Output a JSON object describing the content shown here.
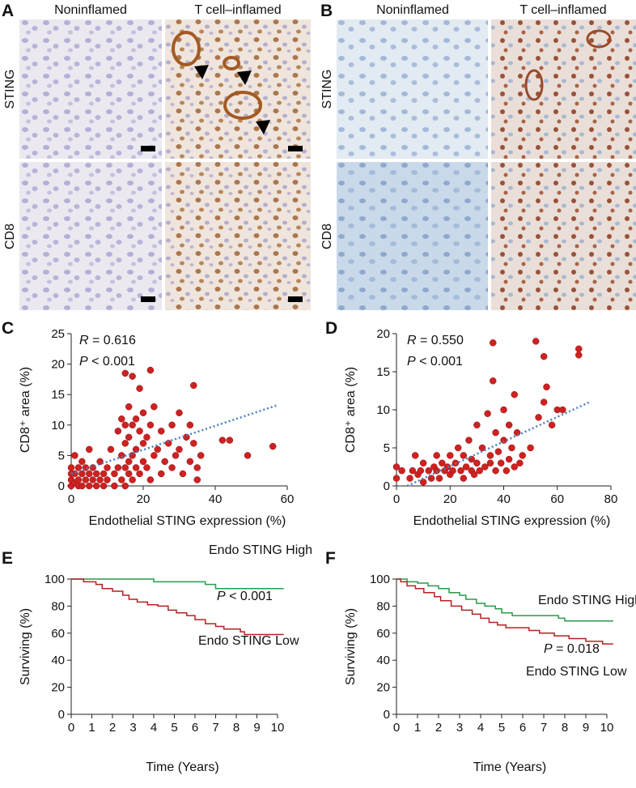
{
  "figure": {
    "panel_labels": [
      "A",
      "B",
      "C",
      "D",
      "E",
      "F"
    ],
    "image_panels": [
      {
        "columns": [
          "Noninflamed",
          "T cell–inflamed"
        ],
        "rows": [
          "STING",
          "CD8"
        ]
      },
      {
        "columns": [
          "Noninflamed",
          "T cell–inflamed"
        ],
        "rows": [
          "STING",
          "CD8"
        ]
      }
    ]
  },
  "chart_data": [
    {
      "type": "scatter",
      "xlabel": "Endothelial STING expression (%)",
      "ylabel": "CD8⁺ area (%)",
      "xlim": [
        0,
        60
      ],
      "ylim": [
        0,
        25
      ],
      "xticks": [
        0,
        20,
        40,
        60
      ],
      "yticks": [
        0,
        5,
        10,
        15,
        20,
        25
      ],
      "annotations": [
        {
          "symbol": "R",
          "text": " = 0.616"
        },
        {
          "symbol": "P",
          "text": " < 0.001"
        }
      ],
      "trendline": {
        "x": [
          0,
          57
        ],
        "values": [
          2,
          13.2
        ],
        "color": "#4a7fc1"
      },
      "series": [
        {
          "color": "#cc2222",
          "x": [
            0,
            0,
            0,
            0,
            1,
            1,
            1,
            2,
            2,
            2,
            3,
            3,
            3,
            4,
            4,
            5,
            5,
            5,
            6,
            6,
            7,
            7,
            8,
            8,
            9,
            9,
            10,
            10,
            11,
            12,
            12,
            13,
            13,
            14,
            14,
            14,
            15,
            15,
            15,
            15,
            15,
            16,
            16,
            16,
            16,
            17,
            17,
            17,
            17,
            18,
            18,
            18,
            19,
            19,
            19,
            20,
            20,
            20,
            21,
            21,
            22,
            22,
            22,
            23,
            23,
            24,
            25,
            25,
            26,
            27,
            28,
            28,
            29,
            30,
            30,
            31,
            32,
            33,
            33,
            34,
            34,
            35,
            35,
            36,
            42,
            44,
            49,
            56
          ],
          "values": [
            0,
            1,
            2,
            3,
            0.5,
            2,
            5,
            0,
            1,
            3,
            0,
            2,
            4,
            1,
            3,
            0,
            2,
            6,
            1,
            3,
            0,
            2,
            1,
            4,
            0,
            2,
            1,
            3,
            6,
            0,
            2,
            3,
            9,
            1,
            5,
            11,
            0,
            3,
            7,
            10,
            18.5,
            2,
            4,
            8,
            13,
            1,
            5,
            10,
            18,
            3,
            6,
            11,
            2,
            9,
            16,
            4,
            7,
            12,
            3,
            8,
            1,
            19,
            10,
            5,
            13,
            6,
            2,
            9,
            4,
            7,
            3,
            10,
            5,
            12,
            6,
            2,
            8,
            4,
            10,
            16.5,
            7,
            1,
            3,
            5,
            7.5,
            7.5,
            5,
            6.5
          ]
        }
      ]
    },
    {
      "type": "scatter",
      "xlabel": "Endothelial STING expression (%)",
      "ylabel": "CD8⁺ area (%)",
      "xlim": [
        0,
        80
      ],
      "ylim": [
        0,
        20
      ],
      "xticks": [
        0,
        20,
        40,
        60,
        80
      ],
      "yticks": [
        0,
        5,
        10,
        15,
        20
      ],
      "annotations": [
        {
          "symbol": "R",
          "text": " = 0.550"
        },
        {
          "symbol": "P",
          "text": " < 0.001"
        }
      ],
      "trendline": {
        "x": [
          4,
          72
        ],
        "values": [
          0,
          11
        ],
        "color": "#4a7fc1"
      },
      "series": [
        {
          "color": "#cc2222",
          "x": [
            0,
            0,
            2,
            5,
            6,
            7,
            8,
            9,
            10,
            10,
            12,
            13,
            14,
            15,
            15,
            16,
            17,
            18,
            19,
            20,
            20,
            21,
            22,
            23,
            24,
            25,
            25,
            26,
            27,
            28,
            28,
            29,
            30,
            30,
            31,
            32,
            33,
            34,
            35,
            35,
            36,
            36,
            37,
            37,
            38,
            39,
            40,
            40,
            41,
            42,
            42,
            43,
            44,
            44,
            45,
            46,
            47,
            50,
            52,
            53,
            55,
            55,
            56,
            58,
            60,
            62,
            68,
            68
          ],
          "values": [
            1,
            2.5,
            2,
            1,
            2,
            4,
            1.5,
            2,
            3,
            0.5,
            2,
            1,
            2.5,
            4,
            2,
            1,
            3,
            2,
            2.5,
            1.5,
            4,
            2,
            3,
            5,
            2,
            1,
            4,
            2.5,
            6,
            2,
            3.5,
            1.5,
            8,
            3,
            2,
            5,
            2.5,
            9.5,
            4,
            3,
            13.8,
            18.8,
            7,
            2,
            4.5,
            3,
            10,
            6,
            2,
            8,
            3.5,
            5,
            12,
            2.5,
            7,
            3,
            4,
            5,
            19,
            9,
            17,
            11,
            13,
            8,
            10,
            10,
            18,
            17.2
          ]
        }
      ]
    },
    {
      "type": "line",
      "xlabel": "Time (Years)",
      "ylabel": "Surviving (%)",
      "xlim": [
        0,
        10
      ],
      "ylim": [
        0,
        100
      ],
      "xticks": [
        0,
        1,
        2,
        3,
        4,
        5,
        6,
        7,
        8,
        9,
        10
      ],
      "yticks": [
        0,
        20,
        40,
        60,
        80,
        100
      ],
      "annotations": [
        {
          "symbol": "P",
          "text": " < 0.001"
        }
      ],
      "series": [
        {
          "name": "Endo STING High",
          "color": "#2a9a4a",
          "x": [
            0,
            4,
            4,
            6.5,
            6.5,
            7,
            7,
            10.3
          ],
          "values": [
            100,
            100,
            98,
            98,
            96,
            96,
            93,
            93
          ]
        },
        {
          "name": "Endo STING Low",
          "color": "#b22222",
          "x": [
            0,
            0.6,
            0.6,
            1.2,
            1.2,
            1.5,
            1.5,
            2,
            2,
            2.5,
            2.5,
            2.8,
            2.8,
            3.2,
            3.2,
            3.7,
            3.7,
            4.2,
            4.2,
            4.7,
            4.7,
            5.1,
            5.1,
            5.6,
            5.6,
            6,
            6,
            6.5,
            6.5,
            7,
            7,
            7.4,
            7.4,
            8.2,
            8.2,
            8.4,
            8.4,
            10.3
          ],
          "values": [
            100,
            100,
            98,
            98,
            96,
            96,
            93,
            93,
            91,
            91,
            88,
            88,
            85,
            85,
            83,
            83,
            81,
            81,
            80,
            80,
            77,
            77,
            75,
            75,
            73,
            73,
            70,
            70,
            67,
            67,
            65,
            65,
            63,
            63,
            61,
            61,
            59,
            59
          ]
        }
      ]
    },
    {
      "type": "line",
      "xlabel": "Time (Years)",
      "ylabel": "Surviving (%)",
      "xlim": [
        0,
        10
      ],
      "ylim": [
        0,
        100
      ],
      "xticks": [
        0,
        1,
        2,
        3,
        4,
        5,
        6,
        7,
        8,
        9,
        10
      ],
      "yticks": [
        0,
        20,
        40,
        60,
        80,
        100
      ],
      "annotations": [
        {
          "symbol": "P",
          "text": " = 0.018"
        }
      ],
      "series": [
        {
          "name": "Endo STING High",
          "color": "#2a9a4a",
          "x": [
            0,
            0.5,
            0.5,
            1,
            1,
            1.5,
            1.5,
            2,
            2,
            2.5,
            2.5,
            3,
            3,
            3.3,
            3.3,
            3.8,
            3.8,
            4.2,
            4.2,
            4.7,
            4.7,
            5,
            5,
            5.5,
            5.5,
            7.7,
            7.7,
            8,
            8,
            10.3
          ],
          "values": [
            100,
            100,
            98,
            98,
            97,
            97,
            95,
            95,
            93,
            93,
            90,
            90,
            88,
            88,
            85,
            85,
            82,
            82,
            80,
            80,
            78,
            78,
            75,
            75,
            73,
            73,
            71,
            71,
            69,
            69
          ]
        },
        {
          "name": "Endo STING Low",
          "color": "#b22222",
          "x": [
            0,
            0.2,
            0.2,
            0.5,
            0.5,
            0.9,
            0.9,
            1.3,
            1.3,
            1.8,
            1.8,
            2.1,
            2.1,
            2.6,
            2.6,
            3.1,
            3.1,
            3.6,
            3.6,
            4,
            4,
            4.4,
            4.4,
            4.8,
            4.8,
            5.2,
            5.2,
            6.3,
            6.3,
            6.8,
            6.8,
            7.5,
            7.5,
            8.2,
            8.2,
            9,
            9,
            9.8,
            9.8,
            10.3
          ],
          "values": [
            100,
            100,
            98,
            98,
            95,
            95,
            93,
            93,
            90,
            90,
            87,
            87,
            84,
            84,
            80,
            80,
            77,
            77,
            74,
            74,
            71,
            71,
            68,
            68,
            66,
            66,
            64,
            64,
            62,
            62,
            60,
            60,
            58,
            58,
            56,
            56,
            54,
            54,
            52,
            52
          ]
        }
      ]
    }
  ]
}
